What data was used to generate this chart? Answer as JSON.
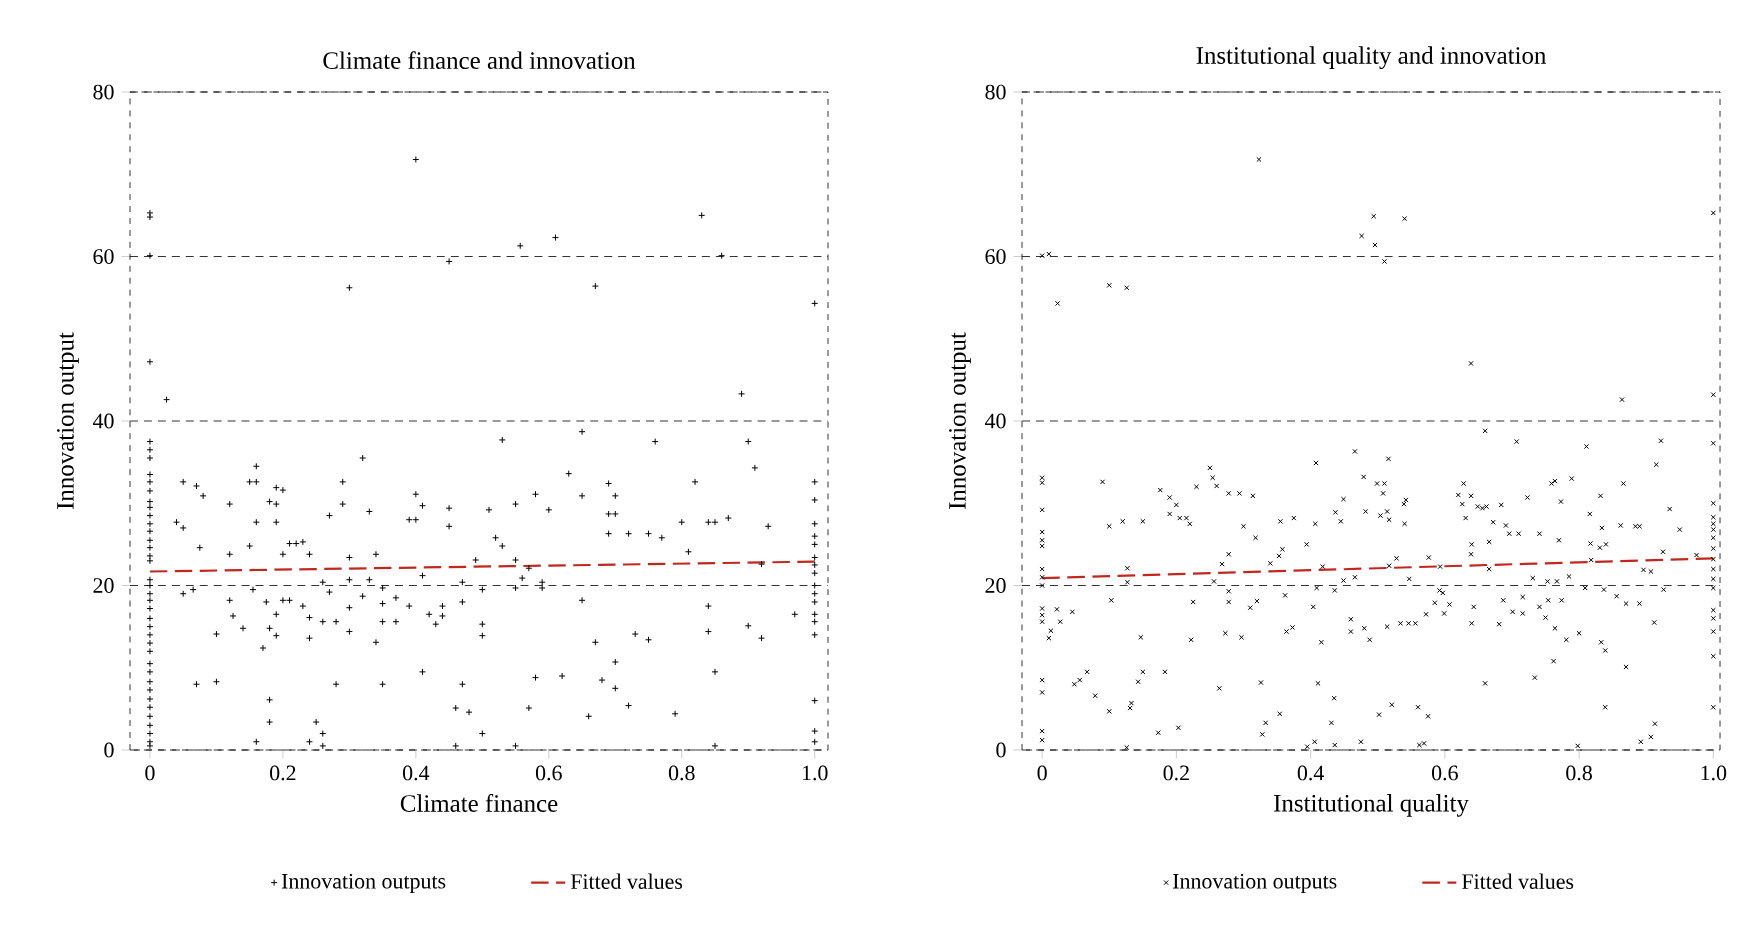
{
  "chart_data": [
    {
      "type": "scatter",
      "title": "Climate finance and innovation",
      "xlabel": "Climate finance",
      "ylabel": "Innovation output",
      "xlim": [
        -0.03,
        1.02
      ],
      "ylim": [
        0,
        80
      ],
      "xticks": [
        0,
        0.2,
        0.4,
        0.6,
        0.8,
        {
          "value": 1,
          "label": "1.0"
        }
      ],
      "yticks": [
        0,
        20,
        40,
        60,
        80
      ],
      "grid": "y",
      "legend": "bottom",
      "series": [
        {
          "name": "Innovation outputs",
          "type": "scatter",
          "marker": "plus",
          "color": "#000000",
          "x": [
            0,
            0,
            0,
            0,
            0,
            0,
            0,
            0,
            0,
            0,
            0,
            0,
            0,
            0,
            0,
            0,
            0,
            0,
            0,
            0,
            0,
            0,
            0,
            0,
            0,
            0,
            0,
            0,
            0,
            0,
            0,
            0,
            0,
            0,
            0,
            0,
            0,
            0,
            0,
            0,
            0.4,
            0.45,
            0.3,
            0.025,
            0.05,
            0.07,
            0.08,
            0.04,
            0.05,
            0.075,
            0.12,
            0.12,
            0.15,
            0.16,
            0.16,
            0.19,
            0.2,
            0.18,
            0.19,
            0.16,
            0.19,
            0.15,
            0.21,
            0.22,
            0.23,
            0.2,
            0.24,
            0.27,
            0.29,
            0.29,
            0.32,
            0.33,
            0.34,
            0.3,
            0.3,
            0.33,
            0.4,
            0.41,
            0.39,
            0.4,
            0.41,
            0.45,
            0.45,
            0.51,
            0.52,
            0.53,
            0.53,
            0.49,
            0.05,
            0.065,
            0.12,
            0.125,
            0.14,
            0.1,
            0.155,
            0.175,
            0.2,
            0.21,
            0.19,
            0.23,
            0.18,
            0.19,
            0.17,
            0.24,
            0.24,
            0.26,
            0.27,
            0.26,
            0.28,
            0.3,
            0.3,
            0.32,
            0.34,
            0.35,
            0.35,
            0.35,
            0.37,
            0.37,
            0.39,
            0.42,
            0.43,
            0.44,
            0.44,
            0.47,
            0.47,
            0.5,
            0.5,
            0.5,
            0.07,
            0.1,
            0.18,
            0.18,
            0.16,
            0.25,
            0.26,
            0.24,
            0.26,
            0.28,
            0.35,
            0.41,
            0.47,
            0.46,
            0.48,
            0.5,
            0.46,
            0.557,
            0.61,
            0.83,
            0.86,
            0.67,
            0.89,
            0.65,
            0.76,
            0.9,
            0.91,
            0.63,
            0.58,
            0.55,
            0.6,
            0.65,
            0.69,
            0.7,
            0.69,
            0.7,
            0.69,
            0.72,
            0.75,
            0.77,
            0.82,
            0.8,
            0.84,
            0.85,
            0.87,
            0.93,
            0.81,
            0.55,
            0.56,
            0.55,
            0.59,
            0.59,
            0.57,
            0.92,
            0.65,
            0.84,
            0.84,
            0.67,
            0.73,
            0.75,
            0.7,
            0.9,
            0.92,
            0.97,
            0.58,
            0.62,
            0.68,
            0.7,
            0.85,
            0.57,
            0.66,
            0.72,
            0.79,
            0.55,
            0.85,
            1,
            1,
            1,
            1,
            1,
            1,
            1,
            1,
            1,
            1,
            1,
            1,
            1,
            1,
            1,
            1,
            1,
            1
          ],
          "values": [
            65.3,
            64.8,
            60.1,
            47.2,
            37.5,
            36.5,
            35.5,
            33.5,
            32.6,
            31.5,
            30.2,
            29.5,
            28.5,
            27.5,
            26.6,
            25.5,
            24.6,
            23.6,
            23.0,
            20.7,
            20,
            19,
            18.2,
            17.2,
            16,
            15,
            14,
            13,
            12,
            10.5,
            9.5,
            8.3,
            7.3,
            6.2,
            5.2,
            4.1,
            3.0,
            2,
            1,
            0.5,
            71.8,
            59.4,
            56.2,
            42.6,
            32.6,
            32.1,
            30.9,
            27.7,
            27,
            24.6,
            29.9,
            23.8,
            32.6,
            32.6,
            34.5,
            31.9,
            31.6,
            30.2,
            29.9,
            27.7,
            27.7,
            24.8,
            25.1,
            25.1,
            25.3,
            23.8,
            23.8,
            28.5,
            32.6,
            29.9,
            35.5,
            29,
            23.8,
            23.4,
            20.7,
            20.7,
            31.1,
            29.7,
            28,
            28,
            21.2,
            29.4,
            27.2,
            29.2,
            25.8,
            37.7,
            24.8,
            23.1,
            19,
            19.5,
            18.2,
            16.3,
            14.8,
            14.1,
            19.5,
            18,
            18.2,
            18.2,
            16.5,
            17.5,
            14.8,
            13.9,
            12.4,
            13.6,
            16.1,
            20.4,
            19.2,
            15.6,
            15.6,
            14.4,
            17.3,
            18.7,
            13.1,
            15.6,
            17.8,
            19.7,
            18.5,
            15.6,
            17.5,
            16.5,
            15.3,
            16.3,
            17.5,
            20.4,
            18,
            19.5,
            15.3,
            13.9,
            8,
            8.3,
            6.1,
            3.4,
            1,
            3.4,
            2,
            1,
            0.5,
            8,
            8,
            9.5,
            8,
            5.1,
            4.6,
            2,
            0.5,
            61.3,
            62.3,
            65,
            60.1,
            56.4,
            43.3,
            38.7,
            37.5,
            37.5,
            34.3,
            33.6,
            31.1,
            29.9,
            29.2,
            30.9,
            32.4,
            30.9,
            28.7,
            28.7,
            26.3,
            26.3,
            26.3,
            25.8,
            32.6,
            27.7,
            27.7,
            27.7,
            28.2,
            27.2,
            24.1,
            23.1,
            20.9,
            19.7,
            20.4,
            19.7,
            22.1,
            22.6,
            18.2,
            17.5,
            14.4,
            13.1,
            14.1,
            13.4,
            10.7,
            15.1,
            13.6,
            16.5,
            8.8,
            9,
            8.5,
            7.5,
            9.5,
            5.1,
            4.1,
            5.4,
            4.4,
            0.5,
            0.5,
            54.3,
            32.6,
            30.4,
            27.5,
            26,
            25,
            23.4,
            22.5,
            21.5,
            20,
            19,
            18,
            16.5,
            15.6,
            14,
            6,
            2.3,
            1
          ]
        },
        {
          "name": "Fitted values",
          "type": "line",
          "line_style": "dashed",
          "color": "#c0281e",
          "x": [
            0,
            1
          ],
          "values": [
            21.7,
            22.9
          ]
        }
      ]
    },
    {
      "type": "scatter",
      "title": "Institutional quality and innovation",
      "xlabel": "Institutional quality",
      "ylabel": "Innovation output",
      "xlim": [
        -0.03,
        1.01
      ],
      "ylim": [
        0,
        80
      ],
      "xticks": [
        0,
        0.2,
        0.4,
        0.6,
        0.8,
        {
          "value": 1,
          "label": "1.0"
        }
      ],
      "yticks": [
        0,
        20,
        40,
        60,
        80
      ],
      "grid": "y",
      "legend": "bottom",
      "series": [
        {
          "name": "Innovation outputs",
          "type": "scatter",
          "marker": "cross",
          "color": "#000000",
          "x": [
            0,
            0,
            0,
            0,
            0,
            0,
            0,
            0,
            0,
            0,
            0,
            0,
            0,
            0,
            0,
            0,
            0,
            0.01,
            0.023,
            0.1,
            0.126,
            0.323,
            0.466,
            0.408,
            0.01,
            0.013,
            0.09,
            0.1,
            0.12,
            0.15,
            0.127,
            0.127,
            0.176,
            0.19,
            0.2,
            0.19,
            0.205,
            0.215,
            0.22,
            0.23,
            0.25,
            0.254,
            0.26,
            0.278,
            0.294,
            0.314,
            0.3,
            0.318,
            0.278,
            0.268,
            0.256,
            0.278,
            0.278,
            0.225,
            0.103,
            0.022,
            0.045,
            0.027,
            0.222,
            0.147,
            0.273,
            0.297,
            0.31,
            0.32,
            0.34,
            0.353,
            0.358,
            0.355,
            0.375,
            0.394,
            0.407,
            0.418,
            0.409,
            0.436,
            0.449,
            0.437,
            0.445,
            0.449,
            0.466,
            0.362,
            0.404,
            0.364,
            0.373,
            0.416,
            0.46,
            0.46,
            0.048,
            0.056,
            0.067,
            0.079,
            0.1,
            0.133,
            0.131,
            0.143,
            0.15,
            0.183,
            0.173,
            0.203,
            0.126,
            0.264,
            0.326,
            0.333,
            0.328,
            0.354,
            0.411,
            0.435,
            0.431,
            0.395,
            0.406,
            0.436,
            0.476,
            0.494,
            0.496,
            0.51,
            0.54,
            0.639,
            0.864,
            0.66,
            0.707,
            0.811,
            0.922,
            0.516,
            0.479,
            0.499,
            0.51,
            0.508,
            0.482,
            0.504,
            0.517,
            0.514,
            0.539,
            0.542,
            0.54,
            0.517,
            0.528,
            0.547,
            0.628,
            0.62,
            0.626,
            0.639,
            0.649,
            0.656,
            0.662,
            0.631,
            0.672,
            0.64,
            0.639,
            0.666,
            0.666,
            0.684,
            0.691,
            0.696,
            0.71,
            0.576,
            0.593,
            0.723,
            0.741,
            0.759,
            0.764,
            0.773,
            0.789,
            0.77,
            0.731,
            0.753,
            0.767,
            0.785,
            0.816,
            0.832,
            0.817,
            0.831,
            0.84,
            0.818,
            0.834,
            0.866,
            0.862,
            0.884,
            0.89,
            0.915,
            0.935,
            0.95,
            0.925,
            0.896,
            0.907,
            0.975,
            0.592,
            0.597,
            0.585,
            0.607,
            0.599,
            0.572,
            0.643,
            0.64,
            0.681,
            0.687,
            0.701,
            0.716,
            0.716,
            0.741,
            0.754,
            0.774,
            0.75,
            0.764,
            0.781,
            0.8,
            0.809,
            0.837,
            0.856,
            0.87,
            0.89,
            0.912,
            0.926,
            0.833,
            0.839,
            0.87,
            0.762,
            0.734,
            0.66,
            0.839,
            0.48,
            0.488,
            0.514,
            0.534,
            0.546,
            0.556,
            0.502,
            0.521,
            0.56,
            0.575,
            0.475,
            0.562,
            0.569,
            0.798,
            0.892,
            0.907,
            0.913,
            1,
            1,
            1,
            1,
            1,
            1,
            1,
            1,
            1,
            1,
            1,
            1,
            1,
            1,
            1,
            1,
            1,
            1
          ],
          "values": [
            60.1,
            33.1,
            32.5,
            29.2,
            26.5,
            25.5,
            24.8,
            22,
            21,
            20,
            17.2,
            16.4,
            15.6,
            8.5,
            7,
            2.3,
            1.2,
            60.3,
            54.3,
            56.5,
            56.2,
            71.8,
            36.3,
            34.9,
            13.6,
            14.5,
            32.6,
            27.2,
            27.8,
            27.8,
            22.1,
            20.4,
            31.6,
            30.7,
            29.8,
            28.7,
            28.2,
            28.2,
            27.5,
            32,
            34.3,
            33.1,
            32.1,
            31.2,
            31.2,
            30.9,
            27.2,
            25.8,
            23.8,
            22.6,
            20.5,
            19.3,
            18,
            18,
            18.2,
            17.1,
            16.8,
            15.6,
            13.4,
            13.7,
            14.2,
            13.7,
            17.3,
            18.1,
            22.7,
            23.6,
            24.4,
            27.8,
            28.2,
            25,
            27.5,
            22.3,
            19.7,
            19.4,
            20.6,
            28.9,
            27.8,
            30.5,
            21,
            18.8,
            17.4,
            14.4,
            14.9,
            13.1,
            15.9,
            14.4,
            8,
            8.5,
            9.5,
            6.6,
            4.7,
            5.7,
            5.1,
            8.3,
            9.5,
            9.5,
            2.1,
            2.7,
            0.3,
            7.5,
            8.2,
            3.3,
            1.9,
            4.4,
            8.1,
            6.3,
            3.3,
            0.4,
            1,
            0.6,
            62.5,
            64.9,
            61.4,
            59.4,
            64.6,
            47,
            42.6,
            38.8,
            37.5,
            36.9,
            37.6,
            35.4,
            33.2,
            32.4,
            32.4,
            31.2,
            29,
            28.5,
            28,
            29,
            29.9,
            30.4,
            27.5,
            22.4,
            23.3,
            20.8,
            32.4,
            31,
            29.9,
            30.9,
            29.6,
            29.4,
            29.6,
            28.2,
            27.7,
            25,
            23.8,
            25.3,
            22,
            29.8,
            27.3,
            26.3,
            26.3,
            23.4,
            22.3,
            30.7,
            26.3,
            32.4,
            32.7,
            30.2,
            33,
            25.5,
            20.9,
            20.5,
            20.5,
            21.1,
            28.7,
            30.9,
            25.1,
            24.6,
            25,
            23.1,
            27,
            32.4,
            27.3,
            27.2,
            27.2,
            34.7,
            29.3,
            26.8,
            24.1,
            21.9,
            21.7,
            23.7,
            19.4,
            19.1,
            17.9,
            17.7,
            16.6,
            16.5,
            17.4,
            15.4,
            15.3,
            18.2,
            16.8,
            16.6,
            18.6,
            17.4,
            18.2,
            18.2,
            16.1,
            14.8,
            13.4,
            14.2,
            19.7,
            19.5,
            18.7,
            17.8,
            17.8,
            15.5,
            19.5,
            13.1,
            12.1,
            10.1,
            10.8,
            8.8,
            8.1,
            5.2,
            14.8,
            13.4,
            15,
            15.4,
            15.4,
            15.4,
            4.3,
            5.5,
            5.2,
            4.1,
            1,
            0.6,
            0.8,
            0.5,
            1,
            1.6,
            3.2,
            65.3,
            43.2,
            37.3,
            30,
            28.3,
            27.5,
            26.8,
            25.8,
            24.5,
            23.2,
            22,
            20.8,
            19.7,
            17,
            16,
            14.4,
            11.4,
            5.2
          ]
        },
        {
          "name": "Fitted values",
          "type": "line",
          "line_style": "dashed",
          "color": "#c0281e",
          "x": [
            0,
            1
          ],
          "values": [
            20.9,
            23.3
          ]
        }
      ]
    }
  ]
}
